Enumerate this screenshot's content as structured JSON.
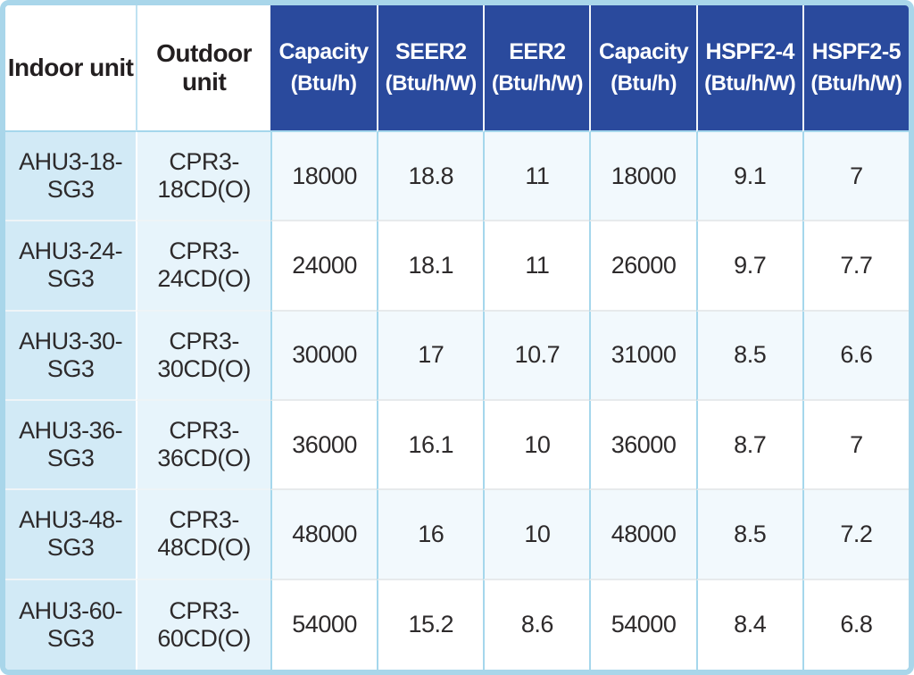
{
  "theme": {
    "header_blue": "#2a4a9d",
    "outer_border": "#a9d6ea",
    "col1_bg": "#d2eaf6",
    "col2_bg": "#e7f4fb",
    "odd_row_bg": "#f2f9fd",
    "even_row_bg": "#ffffff",
    "grid_blue": "#a5d7ec",
    "grid_gray": "#e7eaec",
    "text_dark": "#2d2a2b"
  },
  "table": {
    "columns": [
      {
        "label": "Indoor unit",
        "sub": ""
      },
      {
        "label": "Outdoor unit",
        "sub": ""
      },
      {
        "label": "Capacity",
        "sub": "(Btu/h)"
      },
      {
        "label": "SEER2",
        "sub": "(Btu/h/W)"
      },
      {
        "label": "EER2",
        "sub": "(Btu/h/W)"
      },
      {
        "label": "Capacity",
        "sub": "(Btu/h)"
      },
      {
        "label": "HSPF2-4",
        "sub": "(Btu/h/W)"
      },
      {
        "label": "HSPF2-5",
        "sub": "(Btu/h/W)"
      }
    ],
    "rows": [
      [
        "AHU3-18-SG3",
        "CPR3-18CD(O)",
        "18000",
        "18.8",
        "11",
        "18000",
        "9.1",
        "7"
      ],
      [
        "AHU3-24-SG3",
        "CPR3-24CD(O)",
        "24000",
        "18.1",
        "11",
        "26000",
        "9.7",
        "7.7"
      ],
      [
        "AHU3-30-SG3",
        "CPR3-30CD(O)",
        "30000",
        "17",
        "10.7",
        "31000",
        "8.5",
        "6.6"
      ],
      [
        "AHU3-36-SG3",
        "CPR3-36CD(O)",
        "36000",
        "16.1",
        "10",
        "36000",
        "8.7",
        "7"
      ],
      [
        "AHU3-48-SG3",
        "CPR3-48CD(O)",
        "48000",
        "16",
        "10",
        "48000",
        "8.5",
        "7.2"
      ],
      [
        "AHU3-60-SG3",
        "CPR3-60CD(O)",
        "54000",
        "15.2",
        "8.6",
        "54000",
        "8.4",
        "6.8"
      ]
    ]
  }
}
